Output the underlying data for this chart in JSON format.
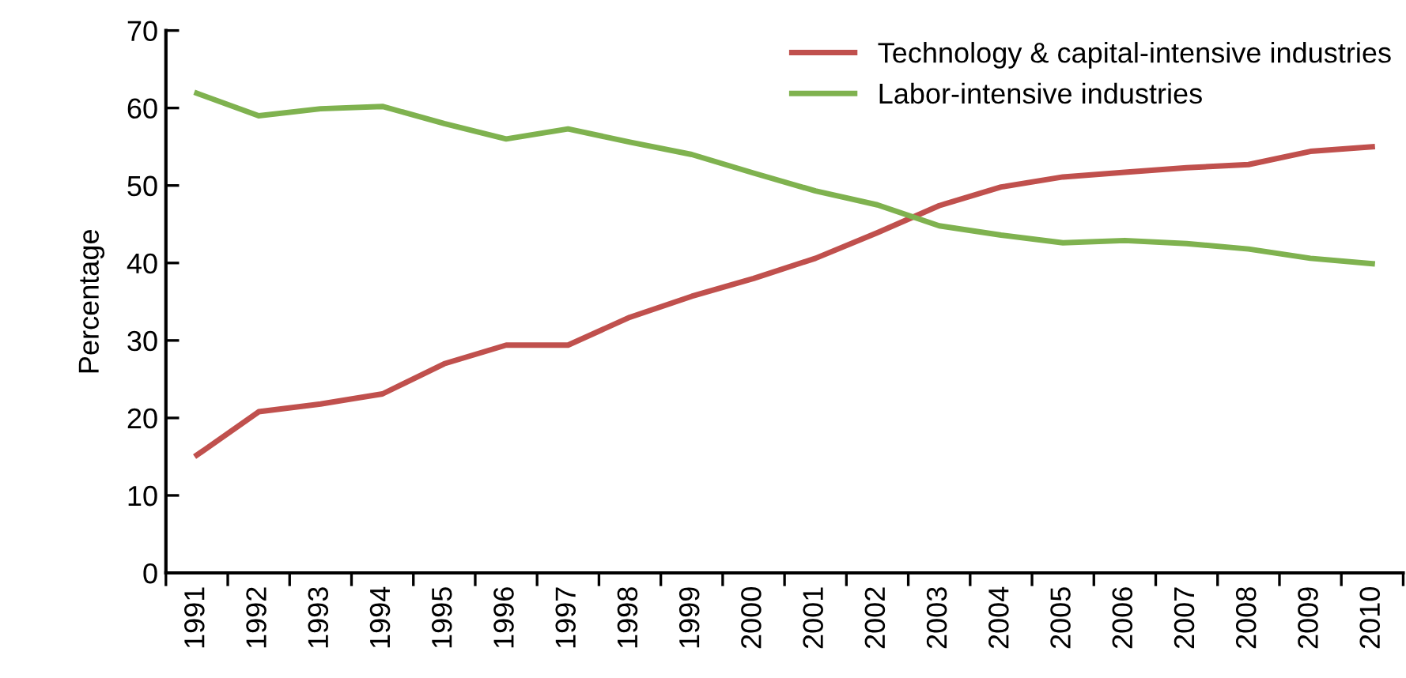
{
  "chart_data": {
    "type": "line",
    "ylabel": "Percentage",
    "categories": [
      "1991",
      "1992",
      "1993",
      "1994",
      "1995",
      "1996",
      "1997",
      "1998",
      "1999",
      "2000",
      "2001",
      "2002",
      "2003",
      "2004",
      "2005",
      "2006",
      "2007",
      "2008",
      "2009",
      "2010"
    ],
    "series": [
      {
        "name": "Technology & capital-intensive industries",
        "color": "#c0504d",
        "values": [
          15.2,
          20.8,
          21.8,
          23.1,
          27.0,
          29.4,
          29.4,
          33.0,
          35.7,
          38.0,
          40.6,
          43.9,
          47.4,
          49.8,
          51.1,
          51.7,
          52.3,
          52.7,
          54.4,
          55.0
        ]
      },
      {
        "name": "Labor-intensive industries",
        "color": "#7fb24f",
        "values": [
          61.9,
          59.0,
          59.9,
          60.2,
          58.0,
          56.0,
          57.3,
          55.6,
          54.0,
          51.6,
          49.3,
          47.5,
          44.8,
          43.6,
          42.6,
          42.9,
          42.5,
          41.8,
          40.6,
          39.9
        ]
      }
    ],
    "ylim": [
      0,
      70
    ],
    "yticks": [
      0,
      10,
      20,
      30,
      40,
      50,
      60,
      70
    ],
    "grid": false,
    "legend": "top right",
    "marker": "none",
    "line_style": "solid"
  }
}
